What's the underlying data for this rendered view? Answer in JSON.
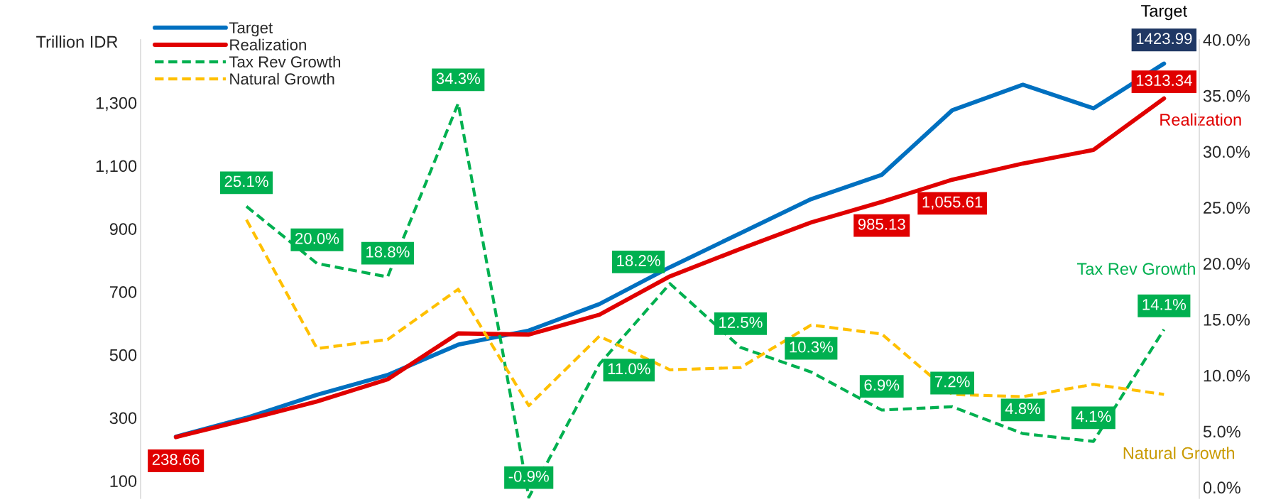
{
  "chart_data": {
    "type": "line",
    "ylabel": "Trillion IDR",
    "categories": [
      null,
      null,
      null,
      null,
      null,
      null,
      null,
      null,
      null,
      null,
      null,
      null,
      null,
      null,
      null
    ],
    "ylim": [
      44,
      1500
    ],
    "yticks": [
      100,
      300,
      500,
      700,
      900,
      {
        "value": 1100,
        "label": "1,100"
      },
      {
        "value": 1300,
        "label": "1,300"
      }
    ],
    "y2lim": [
      -1,
      40
    ],
    "y2ticks": [
      {
        "value": 0,
        "label": "0.0%"
      },
      {
        "value": 5,
        "label": "5.0%"
      },
      {
        "value": 10,
        "label": "10.0%"
      },
      {
        "value": 15,
        "label": "15.0%"
      },
      {
        "value": 20,
        "label": "20.0%"
      },
      {
        "value": 25,
        "label": "25.0%"
      },
      {
        "value": 30,
        "label": "30.0%"
      },
      {
        "value": 35,
        "label": "35.0%"
      },
      {
        "value": 40,
        "label": "40.0%"
      }
    ],
    "series": [
      {
        "name": "Target",
        "color": "#0070c0",
        "line_style": "solid",
        "values": [
          240,
          300,
          373,
          436,
          532,
          577,
          661,
          778,
          886,
          994,
          1071,
          1276,
          1357,
          1282,
          1423.99
        ],
        "value_labels": [
          null,
          null,
          null,
          null,
          null,
          null,
          null,
          null,
          null,
          null,
          null,
          null,
          null,
          null,
          "1423.99"
        ]
      },
      {
        "name": "Realization",
        "color": "#e00000",
        "line_style": "solid",
        "values": [
          238.66,
          294,
          352,
          422,
          568,
          564,
          627,
          749,
          836,
          920,
          985.13,
          1055.61,
          1107,
          1150,
          1313.34
        ],
        "value_labels": [
          "238.66",
          null,
          null,
          null,
          null,
          null,
          null,
          null,
          null,
          null,
          "985.13",
          "1,055.61",
          null,
          null,
          "1313.34"
        ]
      },
      {
        "name": "Tax Rev Growth",
        "color": "#00b050",
        "line_style": "dashed",
        "axis": "y2",
        "values": [
          null,
          25.1,
          20.0,
          18.8,
          34.3,
          -0.9,
          11.0,
          18.2,
          12.5,
          10.3,
          6.9,
          7.2,
          4.8,
          4.1,
          14.1
        ],
        "value_labels": [
          null,
          "25.1%",
          "20.0%",
          "18.8%",
          "34.3%",
          "-0.9%",
          "11.0%",
          "18.2%",
          "12.5%",
          "10.3%",
          "6.9%",
          "7.2%",
          "4.8%",
          "4.1%",
          "14.1%"
        ]
      },
      {
        "name": "Natural Growth",
        "color": "#ffc000",
        "line_style": "dashed",
        "axis": "y2",
        "values": [
          null,
          23.9,
          12.4,
          13.2,
          17.7,
          7.3,
          13.5,
          10.5,
          10.7,
          14.5,
          13.7,
          8.3,
          8.1,
          9.2,
          8.3
        ]
      }
    ],
    "annotations": [
      "Target",
      "Realization",
      "Tax Rev Growth",
      "Natural Growth"
    ],
    "legend": "top left",
    "grid": false
  }
}
